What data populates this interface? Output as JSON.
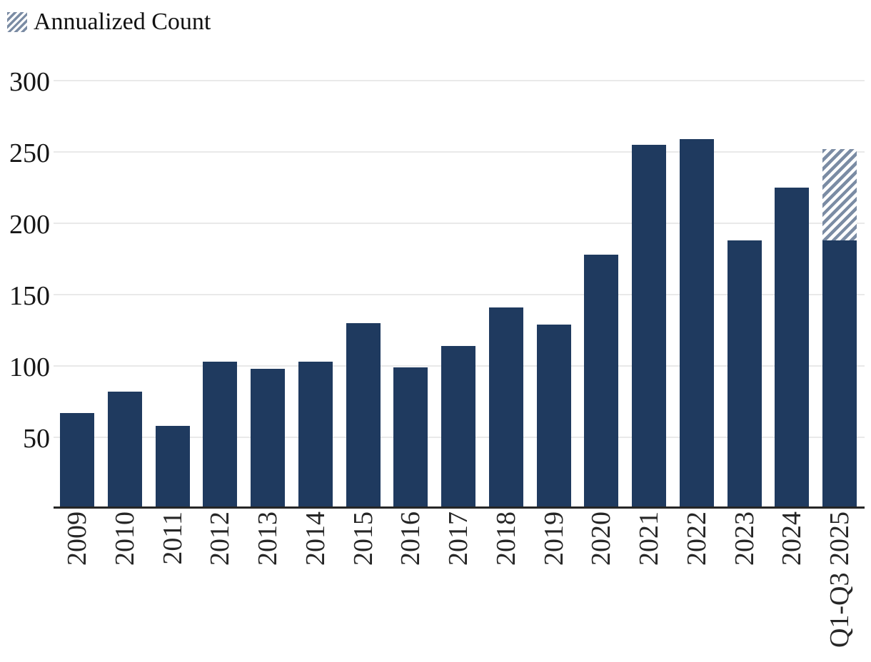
{
  "legend": {
    "label": "Annualized Count"
  },
  "chart_data": {
    "type": "bar",
    "title": "",
    "xlabel": "",
    "ylabel": "",
    "categories": [
      "2009",
      "2010",
      "2011",
      "2012",
      "2013",
      "2014",
      "2015",
      "2016",
      "2017",
      "2018",
      "2019",
      "2020",
      "2021",
      "2022",
      "2023",
      "2024",
      "Q1-Q3 2025"
    ],
    "values": [
      67,
      82,
      58,
      103,
      98,
      103,
      130,
      99,
      114,
      141,
      129,
      178,
      255,
      259,
      188,
      225,
      188
    ],
    "annualized_extension": {
      "category": "Q1-Q3 2025",
      "from": 188,
      "to": 252,
      "style": "diagonal-hatch"
    },
    "yticks": [
      50,
      100,
      150,
      200,
      250,
      300
    ],
    "ylim": [
      0,
      310
    ],
    "grid": true,
    "legend_entries": [
      "Annualized Count"
    ],
    "legend_position": "top-left",
    "colors": {
      "bar": "#1f3a5f",
      "hatch": "#7b8ca4",
      "gridline": "#e9e9e9",
      "axis": "#262626",
      "text": "#161616"
    }
  }
}
